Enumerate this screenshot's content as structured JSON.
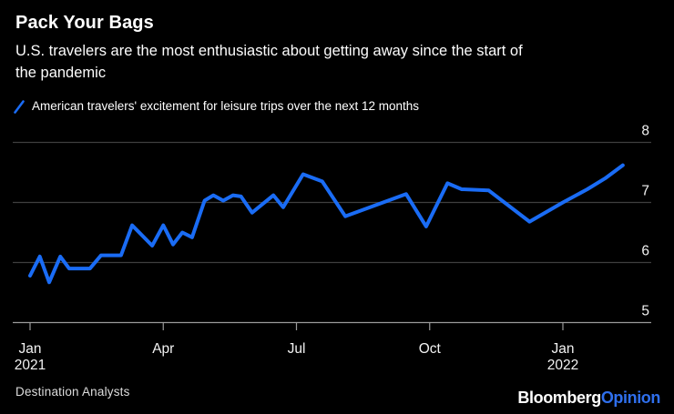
{
  "header": {
    "title": "Pack Your Bags",
    "subtitle_lines": [
      "U.S. travelers are the most enthusiastic about getting away since the start of",
      "the pandemic"
    ]
  },
  "legend": {
    "label": "American travelers' excitement for leisure trips over the next 12 months"
  },
  "chart_data": {
    "type": "line",
    "title": "Pack Your Bags",
    "x_description": "months since Jan 2021 tick (0 = Jan 2021, 12 = Jan 2022)",
    "y_ticks": [
      5,
      6,
      7,
      8
    ],
    "ylim": [
      5,
      8.3
    ],
    "grid": "horizontal",
    "legend_position": "top-left",
    "x_ticks": [
      {
        "pos": 0,
        "label": "Jan",
        "sublabel": "2021"
      },
      {
        "pos": 3,
        "label": "Apr",
        "sublabel": ""
      },
      {
        "pos": 6,
        "label": "Jul",
        "sublabel": ""
      },
      {
        "pos": 9,
        "label": "Oct",
        "sublabel": ""
      },
      {
        "pos": 12,
        "label": "Jan",
        "sublabel": "2022"
      }
    ],
    "series": [
      {
        "name": "American travelers' excitement for leisure trips over the next 12 months",
        "color": "#1a6cf5",
        "points": [
          [
            0.0,
            5.78
          ],
          [
            0.22,
            6.1
          ],
          [
            0.43,
            5.67
          ],
          [
            0.68,
            6.1
          ],
          [
            0.88,
            5.9
          ],
          [
            1.35,
            5.9
          ],
          [
            1.6,
            6.12
          ],
          [
            2.05,
            6.12
          ],
          [
            2.3,
            6.62
          ],
          [
            2.75,
            6.28
          ],
          [
            3.0,
            6.62
          ],
          [
            3.22,
            6.3
          ],
          [
            3.43,
            6.5
          ],
          [
            3.65,
            6.42
          ],
          [
            3.93,
            7.03
          ],
          [
            4.13,
            7.12
          ],
          [
            4.35,
            7.03
          ],
          [
            4.57,
            7.12
          ],
          [
            4.75,
            7.1
          ],
          [
            5.0,
            6.83
          ],
          [
            5.48,
            7.12
          ],
          [
            5.7,
            6.92
          ],
          [
            6.15,
            7.47
          ],
          [
            6.58,
            7.35
          ],
          [
            7.1,
            6.77
          ],
          [
            8.47,
            7.14
          ],
          [
            8.92,
            6.6
          ],
          [
            9.4,
            7.32
          ],
          [
            9.72,
            7.22
          ],
          [
            10.33,
            7.2
          ],
          [
            11.25,
            6.68
          ],
          [
            12.0,
            7.0
          ],
          [
            12.55,
            7.22
          ],
          [
            12.95,
            7.4
          ],
          [
            13.35,
            7.62
          ]
        ]
      }
    ]
  },
  "footer": {
    "source": "Destination Analysts",
    "logo_white": "Bloomberg",
    "logo_blue": "Opinion"
  },
  "colors": {
    "background": "#000000",
    "line": "#1a6cf5",
    "grid": "#3f3f3f",
    "axis": "#9a9a9a",
    "tick_label": "#f2f2f2",
    "text": "#ffffff",
    "source_text": "#dddddd",
    "logo_blue": "#2f6fed"
  }
}
